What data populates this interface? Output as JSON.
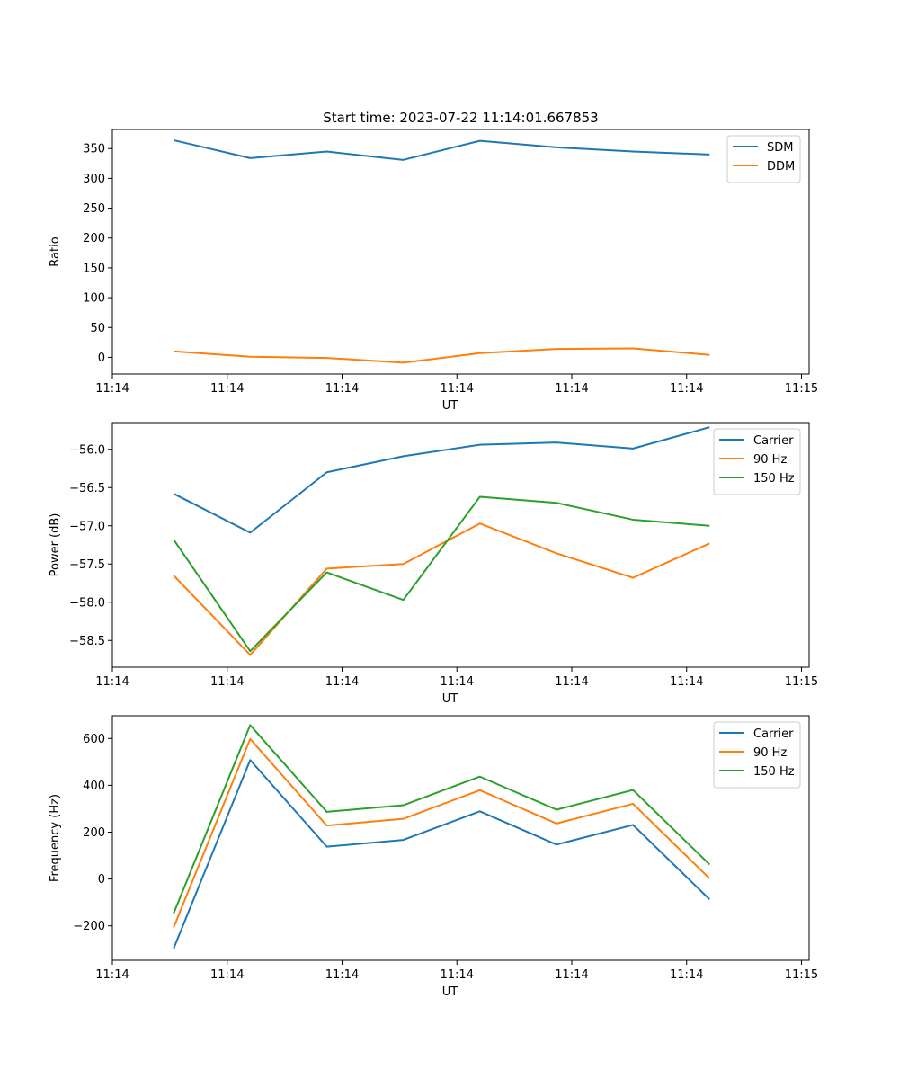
{
  "chart_data": [
    {
      "type": "line",
      "title": "Start time: 2023-07-22 11:14:01.667853",
      "xlabel": "UT",
      "ylabel": "Ratio",
      "x": [
        1,
        2,
        3,
        4,
        5,
        6,
        7,
        8
      ],
      "xlim": [
        0.2,
        9.3
      ],
      "xticks": [
        0.2,
        1.7,
        3.2,
        4.7,
        6.2,
        7.7,
        9.2
      ],
      "xtick_labels": [
        "11:14",
        "11:14",
        "11:14",
        "11:14",
        "11:14",
        "11:14",
        "11:15"
      ],
      "ylim": [
        -28,
        382
      ],
      "yticks": [
        0,
        50,
        100,
        150,
        200,
        250,
        300,
        350
      ],
      "ytick_labels": [
        "0",
        "50",
        "100",
        "150",
        "200",
        "250",
        "300",
        "350"
      ],
      "legend": "top-right",
      "series": [
        {
          "name": "SDM",
          "color": "#1f77b4",
          "values": [
            364,
            334,
            345,
            331,
            363,
            352,
            345,
            340
          ]
        },
        {
          "name": "DDM",
          "color": "#ff7f0e",
          "values": [
            10,
            1,
            -1,
            -9,
            7,
            14,
            15,
            4
          ]
        }
      ]
    },
    {
      "type": "line",
      "xlabel": "UT",
      "ylabel": "Power (dB)",
      "x": [
        1,
        2,
        3,
        4,
        5,
        6,
        7,
        8
      ],
      "xlim": [
        0.2,
        9.3
      ],
      "xticks": [
        0.2,
        1.7,
        3.2,
        4.7,
        6.2,
        7.7,
        9.2
      ],
      "xtick_labels": [
        "11:14",
        "11:14",
        "11:14",
        "11:14",
        "11:14",
        "11:14",
        "11:15"
      ],
      "ylim": [
        -58.85,
        -55.65
      ],
      "yticks": [
        -58.5,
        -58.0,
        -57.5,
        -57.0,
        -56.5,
        -56.0
      ],
      "ytick_labels": [
        "−58.5",
        "−58.0",
        "−57.5",
        "−57.0",
        "−56.5",
        "−56.0"
      ],
      "legend": "top-right",
      "series": [
        {
          "name": "Carrier",
          "color": "#1f77b4",
          "values": [
            -56.58,
            -57.09,
            -56.3,
            -56.09,
            -55.94,
            -55.91,
            -55.99,
            -55.71
          ]
        },
        {
          "name": "90 Hz",
          "color": "#ff7f0e",
          "values": [
            -57.65,
            -58.69,
            -57.56,
            -57.5,
            -56.97,
            -57.36,
            -57.68,
            -57.23
          ]
        },
        {
          "name": "150 Hz",
          "color": "#2ca02c",
          "values": [
            -57.18,
            -58.64,
            -57.61,
            -57.97,
            -56.62,
            -56.7,
            -56.92,
            -57.0
          ]
        }
      ]
    },
    {
      "type": "line",
      "xlabel": "UT",
      "ylabel": "Frequency (Hz)",
      "x": [
        1,
        2,
        3,
        4,
        5,
        6,
        7,
        8
      ],
      "xlim": [
        0.2,
        9.3
      ],
      "xticks": [
        0.2,
        1.7,
        3.2,
        4.7,
        6.2,
        7.7,
        9.2
      ],
      "xtick_labels": [
        "11:14",
        "11:14",
        "11:14",
        "11:14",
        "11:14",
        "11:14",
        "11:15"
      ],
      "ylim": [
        -347,
        697
      ],
      "yticks": [
        -200,
        0,
        200,
        400,
        600
      ],
      "ytick_labels": [
        "−200",
        "0",
        "200",
        "400",
        "600"
      ],
      "legend": "top-right",
      "series": [
        {
          "name": "Carrier",
          "color": "#1f77b4",
          "values": [
            -297,
            508,
            138,
            167,
            289,
            147,
            231,
            -87
          ]
        },
        {
          "name": "90 Hz",
          "color": "#ff7f0e",
          "values": [
            -207,
            598,
            228,
            257,
            379,
            237,
            321,
            2
          ]
        },
        {
          "name": "150 Hz",
          "color": "#2ca02c",
          "values": [
            -147,
            657,
            287,
            315,
            437,
            296,
            380,
            62
          ]
        }
      ]
    }
  ]
}
